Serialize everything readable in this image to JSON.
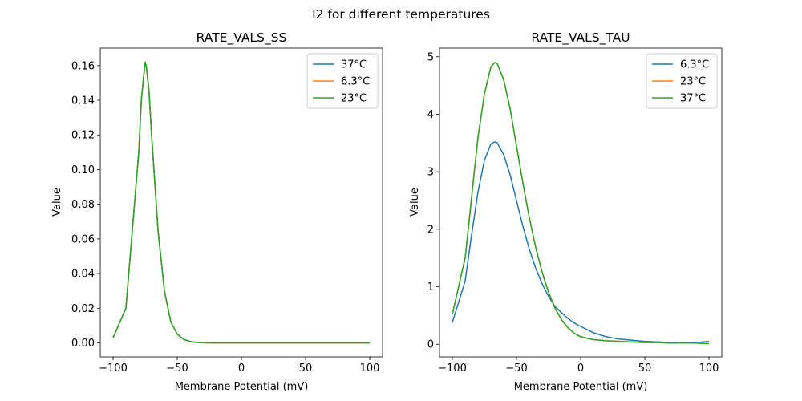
{
  "figure": {
    "suptitle": "I2 for different temperatures"
  },
  "colors": {
    "blue": "#1f77b4",
    "orange": "#ff7f0e",
    "green": "#2ca02c"
  },
  "chart_data": [
    {
      "type": "line",
      "title": "RATE_VALS_SS",
      "xlabel": "Membrane Potential (mV)",
      "ylabel": "Value",
      "xlim": [
        -110,
        110
      ],
      "ylim": [
        -0.0081,
        0.1701
      ],
      "xticks": [
        -100,
        -50,
        0,
        50,
        100
      ],
      "xtick_labels": [
        "−100",
        "−50",
        "0",
        "50",
        "100"
      ],
      "yticks": [
        0,
        0.02,
        0.04,
        0.06,
        0.08,
        0.1,
        0.12,
        0.14,
        0.16
      ],
      "ytick_labels": [
        "0.00",
        "0.02",
        "0.04",
        "0.06",
        "0.08",
        "0.10",
        "0.12",
        "0.14",
        "0.16"
      ],
      "legend_position": "top-right",
      "series": [
        {
          "name": "37°C",
          "color": "#1f77b4",
          "x": [
            -100,
            -90,
            -85,
            -80,
            -78,
            -76,
            -75,
            -74,
            -72,
            -70,
            -65,
            -60,
            -55,
            -50,
            -45,
            -40,
            -35,
            -30,
            -25,
            -20,
            0,
            50,
            100
          ],
          "y": [
            0.003,
            0.02,
            0.065,
            0.11,
            0.14,
            0.155,
            0.162,
            0.159,
            0.145,
            0.12,
            0.065,
            0.03,
            0.012,
            0.005,
            0.002,
            0.0008,
            0.0003,
            0.0001,
            0,
            0,
            0,
            0,
            0
          ]
        },
        {
          "name": "6.3°C",
          "color": "#ff7f0e",
          "x": [
            -100,
            -90,
            -85,
            -80,
            -78,
            -76,
            -75,
            -74,
            -72,
            -70,
            -65,
            -60,
            -55,
            -50,
            -45,
            -40,
            -35,
            -30,
            -25,
            -20,
            0,
            50,
            100
          ],
          "y": [
            0.003,
            0.02,
            0.065,
            0.11,
            0.14,
            0.155,
            0.162,
            0.159,
            0.145,
            0.12,
            0.065,
            0.03,
            0.012,
            0.005,
            0.002,
            0.0008,
            0.0003,
            0.0001,
            0,
            0,
            0,
            0,
            0
          ]
        },
        {
          "name": "23°C",
          "color": "#2ca02c",
          "x": [
            -100,
            -90,
            -85,
            -80,
            -78,
            -76,
            -75,
            -74,
            -72,
            -70,
            -65,
            -60,
            -55,
            -50,
            -45,
            -40,
            -35,
            -30,
            -25,
            -20,
            0,
            50,
            100
          ],
          "y": [
            0.003,
            0.02,
            0.065,
            0.11,
            0.14,
            0.155,
            0.162,
            0.159,
            0.145,
            0.12,
            0.065,
            0.03,
            0.012,
            0.005,
            0.002,
            0.0008,
            0.0003,
            0.0001,
            0,
            0,
            0,
            0,
            0
          ]
        }
      ]
    },
    {
      "type": "line",
      "title": "RATE_VALS_TAU",
      "xlabel": "Membrane Potential (mV)",
      "ylabel": "Value",
      "xlim": [
        -110,
        110
      ],
      "ylim": [
        -0.22,
        5.15
      ],
      "xticks": [
        -100,
        -50,
        0,
        50,
        100
      ],
      "xtick_labels": [
        "−100",
        "−50",
        "0",
        "50",
        "100"
      ],
      "yticks": [
        0,
        1,
        2,
        3,
        4,
        5
      ],
      "ytick_labels": [
        "0",
        "1",
        "2",
        "3",
        "4",
        "5"
      ],
      "legend_position": "top-right",
      "series": [
        {
          "name": "6.3°C",
          "color": "#1f77b4",
          "x": [
            -100,
            -90,
            -85,
            -80,
            -75,
            -70,
            -67,
            -65,
            -60,
            -55,
            -50,
            -45,
            -40,
            -35,
            -30,
            -25,
            -20,
            -15,
            -10,
            -5,
            0,
            10,
            20,
            30,
            40,
            50,
            60,
            70,
            80,
            90,
            100
          ],
          "y": [
            0.38,
            1.1,
            1.9,
            2.65,
            3.2,
            3.48,
            3.52,
            3.5,
            3.3,
            2.95,
            2.5,
            2.05,
            1.65,
            1.32,
            1.05,
            0.83,
            0.66,
            0.55,
            0.45,
            0.37,
            0.31,
            0.2,
            0.13,
            0.09,
            0.07,
            0.05,
            0.04,
            0.03,
            0.02,
            0.03,
            0.05
          ]
        },
        {
          "name": "23°C",
          "color": "#ff7f0e",
          "x": [
            -100,
            -90,
            -85,
            -80,
            -75,
            -70,
            -67,
            -65,
            -60,
            -55,
            -50,
            -45,
            -40,
            -35,
            -30,
            -25,
            -20,
            -15,
            -10,
            -5,
            0,
            10,
            20,
            30,
            40,
            50,
            60,
            70,
            80,
            90,
            100
          ],
          "y": [
            0.52,
            1.5,
            2.55,
            3.6,
            4.35,
            4.82,
            4.9,
            4.88,
            4.6,
            4.1,
            3.45,
            2.8,
            2.2,
            1.68,
            1.25,
            0.9,
            0.63,
            0.43,
            0.29,
            0.19,
            0.13,
            0.08,
            0.06,
            0.05,
            0.04,
            0.03,
            0.03,
            0.02,
            0.02,
            0.02,
            0.01
          ]
        },
        {
          "name": "37°C",
          "color": "#2ca02c",
          "x": [
            -100,
            -90,
            -85,
            -80,
            -75,
            -70,
            -67,
            -65,
            -60,
            -55,
            -50,
            -45,
            -40,
            -35,
            -30,
            -25,
            -20,
            -15,
            -10,
            -5,
            0,
            10,
            20,
            30,
            40,
            50,
            60,
            70,
            80,
            90,
            100
          ],
          "y": [
            0.52,
            1.5,
            2.55,
            3.6,
            4.35,
            4.82,
            4.9,
            4.88,
            4.6,
            4.1,
            3.45,
            2.8,
            2.2,
            1.68,
            1.25,
            0.9,
            0.63,
            0.43,
            0.29,
            0.19,
            0.13,
            0.08,
            0.06,
            0.05,
            0.04,
            0.03,
            0.03,
            0.02,
            0.02,
            0.02,
            0.01
          ]
        }
      ]
    }
  ]
}
